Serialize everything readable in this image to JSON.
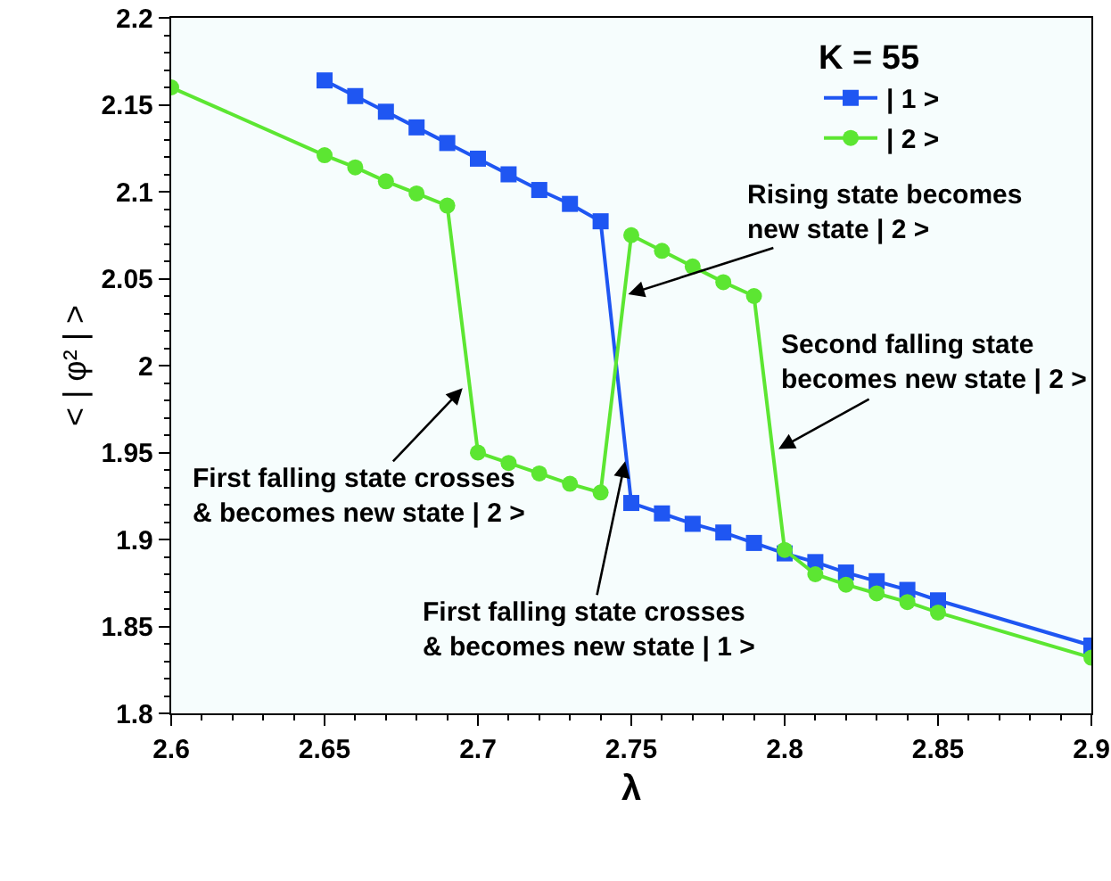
{
  "chart_data": {
    "type": "line",
    "xlabel": "λ",
    "ylabel": "< | φ² | >",
    "legend_title": "K = 55",
    "legend": "top right",
    "x": [
      2.6,
      2.65,
      2.66,
      2.67,
      2.68,
      2.69,
      2.7,
      2.71,
      2.72,
      2.73,
      2.74,
      2.75,
      2.76,
      2.77,
      2.78,
      2.79,
      2.8,
      2.81,
      2.82,
      2.83,
      2.84,
      2.85,
      2.9
    ],
    "series": [
      {
        "name": "| 1 >",
        "color": "#1f56f2",
        "marker": "square",
        "values": [
          null,
          2.164,
          2.155,
          2.146,
          2.137,
          2.128,
          2.119,
          2.11,
          2.101,
          2.093,
          2.083,
          1.921,
          1.915,
          1.909,
          1.904,
          1.898,
          1.892,
          1.887,
          1.881,
          1.876,
          1.871,
          1.865,
          1.839
        ]
      },
      {
        "name": "| 2 >",
        "color": "#5ce632",
        "marker": "circle",
        "values": [
          2.16,
          2.121,
          2.114,
          2.106,
          2.099,
          2.092,
          1.95,
          1.944,
          1.938,
          1.932,
          1.927,
          2.075,
          2.066,
          2.057,
          2.048,
          2.04,
          1.894,
          1.88,
          1.874,
          1.869,
          1.864,
          1.858,
          1.832
        ]
      }
    ],
    "annotations": [
      {
        "text": "Rising state becomes\nnew state | 2 >",
        "x": 2.749,
        "y": 2.041
      },
      {
        "text": "Second falling state\nbecomes new state | 2 >",
        "x": 2.798,
        "y": 1.952
      },
      {
        "text": "First falling state crosses\n& becomes new state | 2 >",
        "x": 2.695,
        "y": 1.987
      },
      {
        "text": "First falling state crosses\n& becomes new state | 1 >",
        "x": 2.748,
        "y": 1.945
      }
    ],
    "xlim": [
      2.6,
      2.9
    ],
    "xticks": [
      2.6,
      {
        "value": 2.61,
        "label": null
      },
      {
        "value": 2.62,
        "label": null
      },
      {
        "value": 2.63,
        "label": null
      },
      {
        "value": 2.64,
        "label": null
      },
      2.65,
      {
        "value": 2.66,
        "label": null
      },
      {
        "value": 2.67,
        "label": null
      },
      {
        "value": 2.68,
        "label": null
      },
      {
        "value": 2.69,
        "label": null
      },
      2.7,
      {
        "value": 2.71,
        "label": null
      },
      {
        "value": 2.72,
        "label": null
      },
      {
        "value": 2.73,
        "label": null
      },
      {
        "value": 2.74,
        "label": null
      },
      2.75,
      {
        "value": 2.76,
        "label": null
      },
      {
        "value": 2.77,
        "label": null
      },
      {
        "value": 2.78,
        "label": null
      },
      {
        "value": 2.79,
        "label": null
      },
      2.8,
      {
        "value": 2.81,
        "label": null
      },
      {
        "value": 2.82,
        "label": null
      },
      {
        "value": 2.83,
        "label": null
      },
      {
        "value": 2.84,
        "label": null
      },
      2.85,
      {
        "value": 2.86,
        "label": null
      },
      {
        "value": 2.87,
        "label": null
      },
      {
        "value": 2.88,
        "label": null
      },
      {
        "value": 2.89,
        "label": null
      },
      2.9
    ],
    "ylim": [
      1.8,
      2.2
    ],
    "yticks": [
      1.8,
      {
        "value": 1.81,
        "label": null
      },
      {
        "value": 1.82,
        "label": null
      },
      {
        "value": 1.83,
        "label": null
      },
      {
        "value": 1.84,
        "label": null
      },
      1.85,
      {
        "value": 1.86,
        "label": null
      },
      {
        "value": 1.87,
        "label": null
      },
      {
        "value": 1.88,
        "label": null
      },
      {
        "value": 1.89,
        "label": null
      },
      1.9,
      {
        "value": 1.91,
        "label": null
      },
      {
        "value": 1.92,
        "label": null
      },
      {
        "value": 1.93,
        "label": null
      },
      {
        "value": 1.94,
        "label": null
      },
      1.95,
      {
        "value": 1.96,
        "label": null
      },
      {
        "value": 1.97,
        "label": null
      },
      {
        "value": 1.98,
        "label": null
      },
      {
        "value": 1.99,
        "label": null
      },
      2,
      {
        "value": 2.01,
        "label": null
      },
      {
        "value": 2.02,
        "label": null
      },
      {
        "value": 2.03,
        "label": null
      },
      {
        "value": 2.04,
        "label": null
      },
      2.05,
      {
        "value": 2.06,
        "label": null
      },
      {
        "value": 2.07,
        "label": null
      },
      {
        "value": 2.08,
        "label": null
      },
      {
        "value": 2.09,
        "label": null
      },
      2.1,
      {
        "value": 2.11,
        "label": null
      },
      {
        "value": 2.12,
        "label": null
      },
      {
        "value": 2.13,
        "label": null
      },
      {
        "value": 2.14,
        "label": null
      },
      2.15,
      {
        "value": 2.16,
        "label": null
      },
      {
        "value": 2.17,
        "label": null
      },
      {
        "value": 2.18,
        "label": null
      },
      {
        "value": 2.19,
        "label": null
      },
      2.2
    ]
  }
}
